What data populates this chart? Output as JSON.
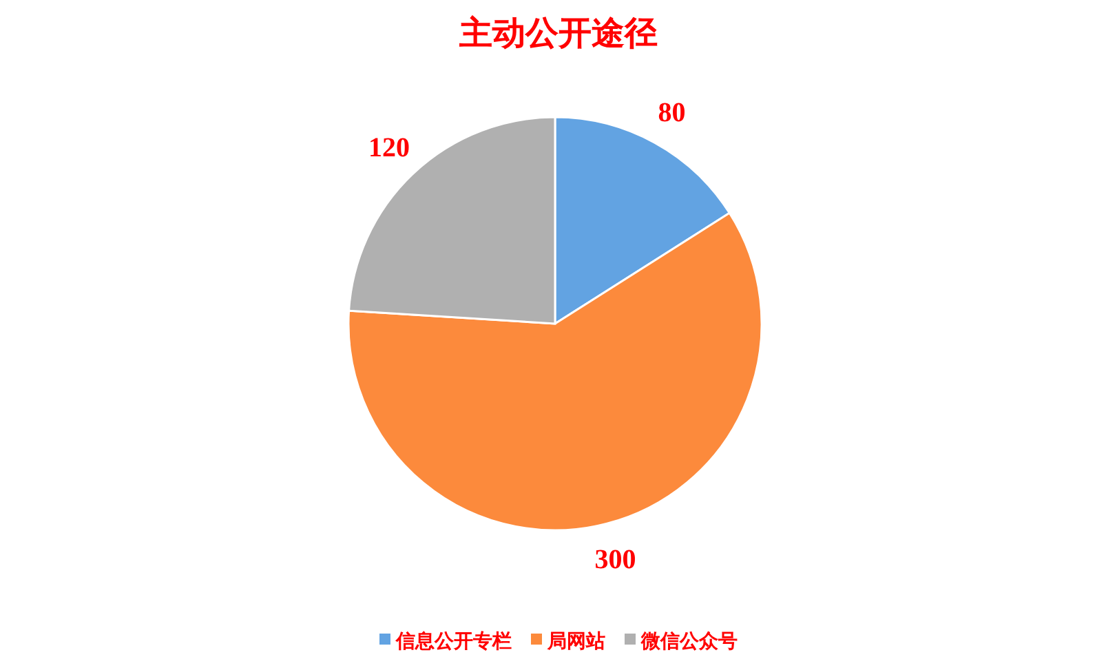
{
  "chart_data": {
    "type": "pie",
    "title": "主动公开途径",
    "categories": [
      "信息公开专栏",
      "局网站",
      "微信公众号"
    ],
    "values": [
      80,
      300,
      120
    ],
    "colors": [
      "#62a3e2",
      "#fc8a3c",
      "#b0b0b0"
    ],
    "data_labels": true,
    "legend": "bottom"
  }
}
